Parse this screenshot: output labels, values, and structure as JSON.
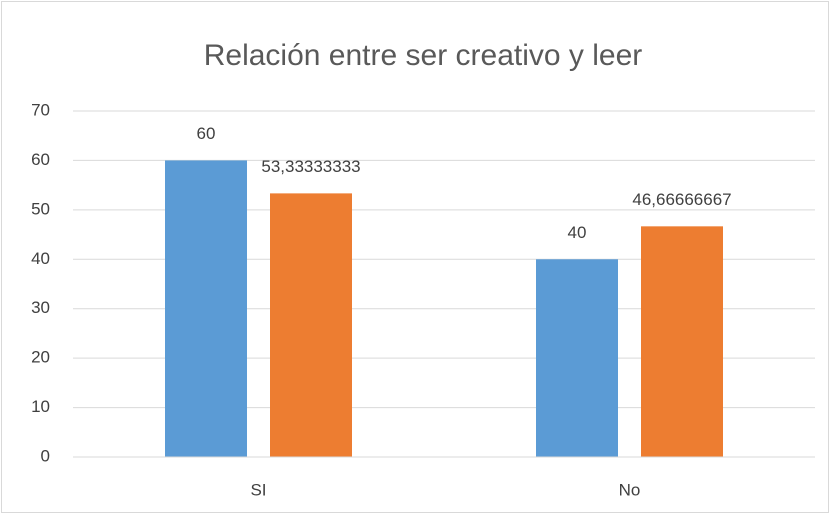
{
  "chart_data": {
    "type": "bar",
    "title": "Relación entre ser creativo y leer",
    "categories": [
      "SI",
      "No"
    ],
    "series": [
      {
        "color": "#5b9bd5",
        "values": [
          60,
          40
        ]
      },
      {
        "color": "#ed7d31",
        "values": [
          53.33333333,
          46.66666667
        ],
        "value_labels": [
          "53,33333333",
          "46,66666667"
        ]
      }
    ],
    "ylim": [
      0,
      70
    ],
    "yticks": [
      0,
      10,
      20,
      30,
      40,
      50,
      60,
      70
    ],
    "grid": true
  }
}
